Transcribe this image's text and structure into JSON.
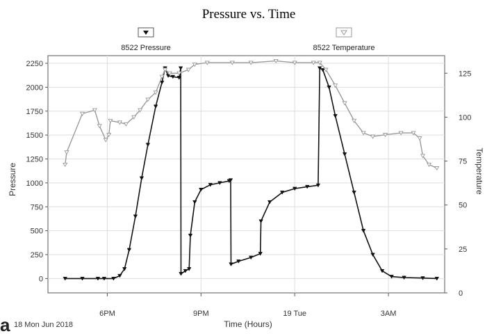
{
  "panel_label": "a",
  "chart_data": {
    "type": "line",
    "title": "Pressure vs. Time",
    "xlabel": "Time (Hours)",
    "ylabel": "Pressure",
    "y2label": "Temperature",
    "date_label": "18 Mon Jun 2018",
    "x_unit": "hours since 18 Jun 2018 00:00",
    "xlim": [
      16.1,
      28.8
    ],
    "ylim": [
      -150,
      2330
    ],
    "y2lim": [
      0,
      135
    ],
    "x_ticks": [
      {
        "x": 18,
        "label": "6PM"
      },
      {
        "x": 21,
        "label": "9PM"
      },
      {
        "x": 24,
        "label": "19 Tue"
      },
      {
        "x": 27,
        "label": "3AM"
      }
    ],
    "y_ticks": [
      0,
      250,
      500,
      750,
      1000,
      1250,
      1500,
      1750,
      2000,
      2250
    ],
    "y2_ticks": [
      0,
      25,
      50,
      75,
      100,
      125
    ],
    "grid": true,
    "legend_placement": "top",
    "series": [
      {
        "name": "8522 Pressure",
        "axis": "left",
        "color": "#111111",
        "marker": "filled-down-triangle",
        "points": [
          [
            16.65,
            0
          ],
          [
            17.2,
            0
          ],
          [
            17.7,
            0
          ],
          [
            17.9,
            0
          ],
          [
            18.2,
            0
          ],
          [
            18.4,
            30
          ],
          [
            18.55,
            100
          ],
          [
            18.7,
            300
          ],
          [
            18.9,
            650
          ],
          [
            19.1,
            1050
          ],
          [
            19.3,
            1400
          ],
          [
            19.55,
            1800
          ],
          [
            19.75,
            2050
          ],
          [
            19.85,
            2200
          ],
          [
            19.95,
            2120
          ],
          [
            20.1,
            2110
          ],
          [
            20.3,
            2100
          ],
          [
            20.35,
            2200
          ],
          [
            20.36,
            50
          ],
          [
            20.5,
            80
          ],
          [
            20.62,
            100
          ],
          [
            20.66,
            450
          ],
          [
            20.8,
            800
          ],
          [
            21.0,
            930
          ],
          [
            21.3,
            980
          ],
          [
            21.6,
            1000
          ],
          [
            21.9,
            1020
          ],
          [
            21.95,
            1030
          ],
          [
            21.96,
            150
          ],
          [
            22.2,
            180
          ],
          [
            22.6,
            220
          ],
          [
            22.9,
            260
          ],
          [
            22.92,
            600
          ],
          [
            23.2,
            800
          ],
          [
            23.6,
            900
          ],
          [
            24.0,
            940
          ],
          [
            24.4,
            960
          ],
          [
            24.75,
            975
          ],
          [
            24.8,
            2200
          ],
          [
            24.9,
            2180
          ],
          [
            25.1,
            2000
          ],
          [
            25.3,
            1700
          ],
          [
            25.6,
            1300
          ],
          [
            25.9,
            900
          ],
          [
            26.2,
            500
          ],
          [
            26.5,
            250
          ],
          [
            26.8,
            80
          ],
          [
            27.1,
            20
          ],
          [
            27.5,
            10
          ],
          [
            28.1,
            5
          ],
          [
            28.55,
            0
          ]
        ]
      },
      {
        "name": "8522 Temperature",
        "axis": "right",
        "color": "#999999",
        "marker": "open-down-triangle",
        "points": [
          [
            16.65,
            73
          ],
          [
            16.7,
            80
          ],
          [
            17.2,
            102
          ],
          [
            17.6,
            104
          ],
          [
            17.75,
            95
          ],
          [
            17.95,
            87
          ],
          [
            18.05,
            90
          ],
          [
            18.1,
            98
          ],
          [
            18.4,
            97
          ],
          [
            18.6,
            96
          ],
          [
            18.85,
            100
          ],
          [
            19.05,
            104
          ],
          [
            19.3,
            110
          ],
          [
            19.55,
            114
          ],
          [
            19.75,
            123
          ],
          [
            19.85,
            127
          ],
          [
            20.0,
            125
          ],
          [
            20.3,
            125
          ],
          [
            20.6,
            127
          ],
          [
            20.8,
            130
          ],
          [
            21.2,
            131
          ],
          [
            22.0,
            131
          ],
          [
            22.6,
            131
          ],
          [
            23.4,
            132
          ],
          [
            24.0,
            131
          ],
          [
            24.6,
            131
          ],
          [
            24.8,
            131
          ],
          [
            25.0,
            127
          ],
          [
            25.3,
            118
          ],
          [
            25.6,
            108
          ],
          [
            25.9,
            98
          ],
          [
            26.2,
            91
          ],
          [
            26.5,
            89
          ],
          [
            26.9,
            90
          ],
          [
            27.4,
            91
          ],
          [
            27.8,
            91
          ],
          [
            28.0,
            88
          ],
          [
            28.1,
            78
          ],
          [
            28.3,
            73
          ],
          [
            28.55,
            71
          ]
        ]
      }
    ]
  }
}
